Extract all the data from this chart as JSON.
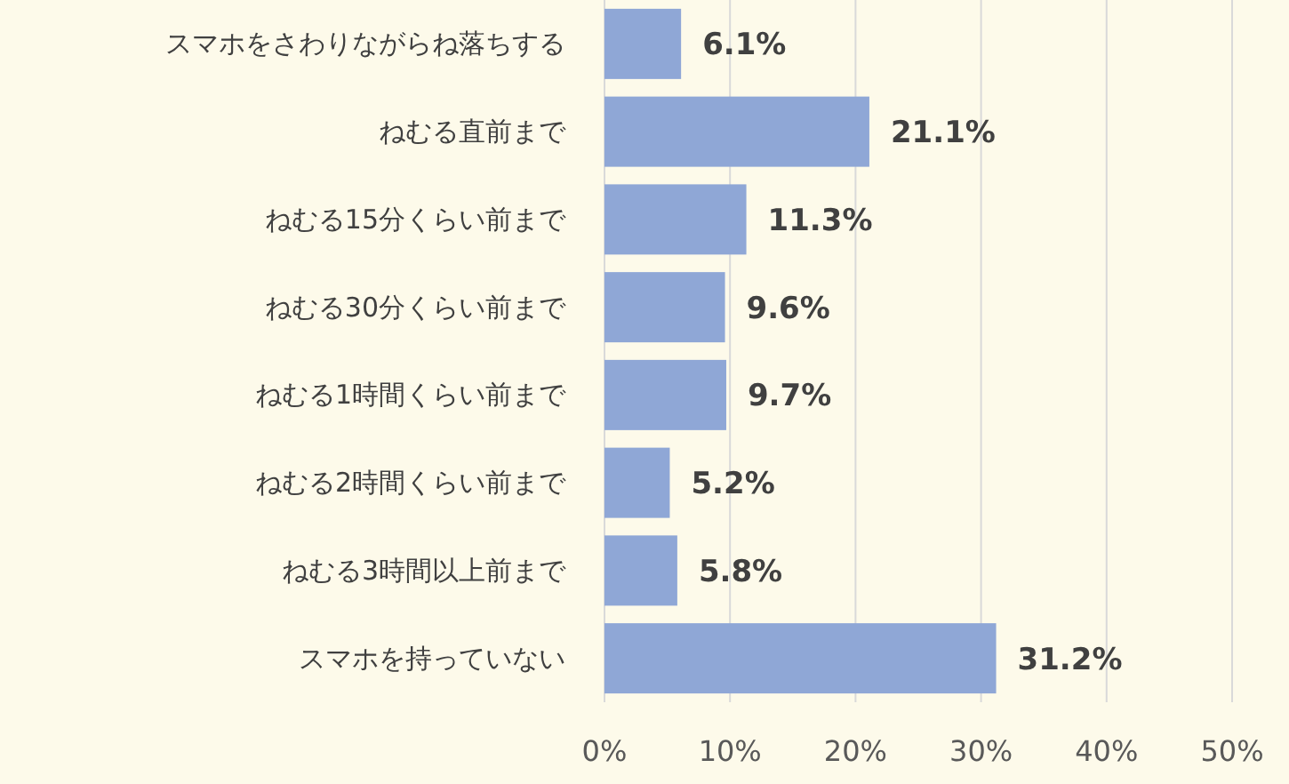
{
  "chart_data": {
    "type": "bar",
    "orientation": "horizontal",
    "categories": [
      "スマホをさわりながらね落ちする",
      "ねむる直前まで",
      "ねむる15分くらい前まで",
      "ねむる30分くらい前まで",
      "ねむる1時間くらい前まで",
      "ねむる2時間くらい前まで",
      "ねむる3時間以上前まで",
      "スマホを持っていない"
    ],
    "values": [
      6.1,
      21.1,
      11.3,
      9.6,
      9.7,
      5.2,
      5.8,
      31.2
    ],
    "value_labels": [
      "6.1%",
      "21.1%",
      "11.3%",
      "9.6%",
      "9.7%",
      "5.2%",
      "5.8%",
      "31.2%"
    ],
    "color": "#8fa7d6",
    "xlim": [
      0,
      50
    ],
    "xticks": [
      {
        "value": 0,
        "label": "0%"
      },
      {
        "value": 10,
        "label": "10%"
      },
      {
        "value": 20,
        "label": "20%"
      },
      {
        "value": 30,
        "label": "30%"
      },
      {
        "value": 40,
        "label": "40%"
      },
      {
        "value": 50,
        "label": "50%"
      }
    ],
    "grid": "x"
  }
}
